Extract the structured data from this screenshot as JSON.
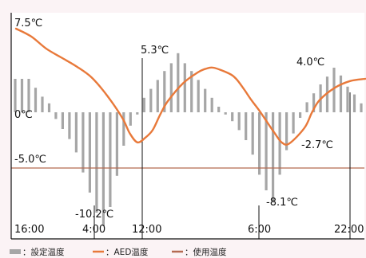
{
  "chart_data": {
    "type": "bar+line",
    "title": "",
    "xlabel": "",
    "ylabel": "",
    "x_tick_labels": [
      "16:00",
      "4:00",
      "12:00",
      "6:00",
      "22:00"
    ],
    "ylim": [
      -12,
      8
    ],
    "grid": false,
    "zero_label": "0℃",
    "usage_temperature": -5.0,
    "usage_label": "-5.0℃",
    "annotations": [
      {
        "text": "7.5℃",
        "series": "AED温度"
      },
      {
        "text": "5.3℃",
        "series": "設定温度"
      },
      {
        "text": "-10.2℃",
        "series": "設定温度"
      },
      {
        "text": "4.0℃",
        "series": "設定温度"
      },
      {
        "text": "-8.1℃",
        "series": "設定温度"
      },
      {
        "text": "-2.7℃",
        "series": "AED温度"
      }
    ],
    "series": [
      {
        "name": "設定温度",
        "type": "bar",
        "color": "#a6a6a6",
        "values": [
          3.0,
          3.0,
          3.0,
          2.2,
          1.4,
          0.8,
          -0.6,
          -1.5,
          -2.4,
          -3.6,
          -5.4,
          -7.2,
          -9.0,
          -10.2,
          -8.5,
          -5.7,
          -3.0,
          -1.2,
          -0.2,
          1.3,
          2.1,
          2.9,
          3.7,
          4.4,
          5.3,
          4.4,
          3.7,
          2.9,
          2.1,
          1.3,
          0.5,
          -0.2,
          -0.8,
          -1.6,
          -2.5,
          -3.8,
          -5.6,
          -7.0,
          -8.1,
          -5.6,
          -3.4,
          -1.9,
          -0.5,
          0.9,
          1.7,
          2.5,
          3.2,
          4.0,
          3.3,
          2.3,
          1.6,
          0.8
        ]
      },
      {
        "name": "AED温度",
        "type": "line",
        "color": "#e8793a",
        "x": [
          0,
          1,
          2,
          3,
          4,
          5,
          6,
          7,
          7.5,
          8,
          8.5,
          9,
          9.5,
          10,
          11,
          12,
          12.5,
          13,
          14,
          14.5,
          15,
          15.5,
          16,
          16.5,
          17,
          17.5,
          18,
          19,
          19.5,
          20,
          21,
          22,
          23
        ],
        "values": [
          7.5,
          6.8,
          5.7,
          4.9,
          4.1,
          3.1,
          1.5,
          -0.5,
          -1.9,
          -2.7,
          -2.3,
          -1.6,
          -0.2,
          1.0,
          2.6,
          3.6,
          3.9,
          4.0,
          3.5,
          3.0,
          2.1,
          1.1,
          0.2,
          -0.8,
          -1.8,
          -2.7,
          -2.8,
          -1.4,
          0.0,
          1.1,
          2.2,
          2.8,
          3.0
        ]
      },
      {
        "name": "使用温度",
        "type": "line",
        "color": "#b46a52",
        "values": [
          -5.0,
          -5.0
        ]
      }
    ],
    "legend": {
      "placement": "bottom",
      "items": [
        {
          "label": "：設定温度",
          "color": "#a6a6a6"
        },
        {
          "label": "：AED温度",
          "color": "#e8793a"
        },
        {
          "label": "：使用温度",
          "color": "#b46a52"
        }
      ]
    }
  }
}
